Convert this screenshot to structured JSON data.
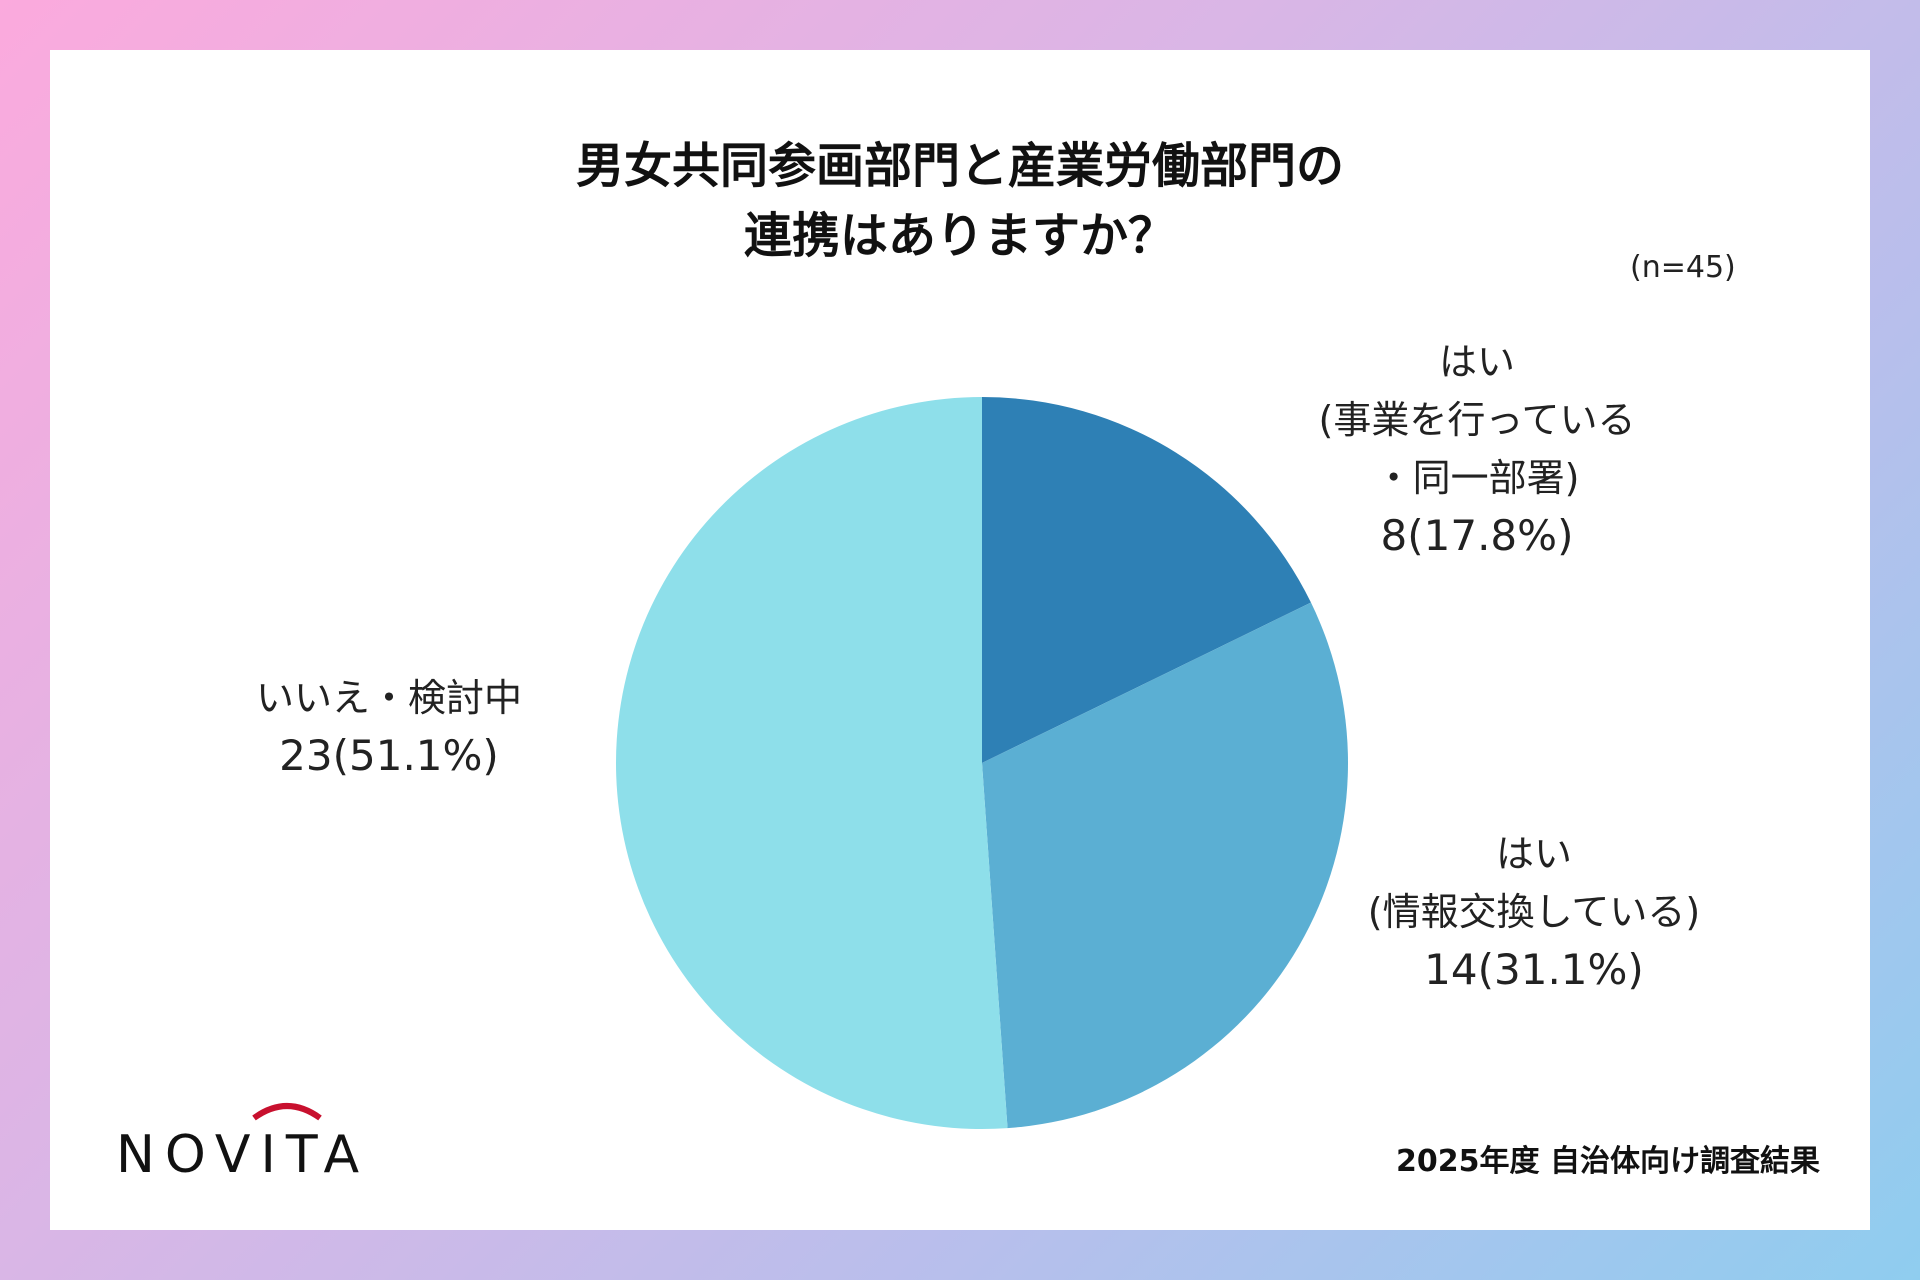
{
  "chart_data": {
    "type": "pie",
    "title": [
      "男女共同参画部門と産業労働部門の",
      "連携はありますか？"
    ],
    "sample_size": "(n=45)",
    "start_angle": "top",
    "direction": "clockwise",
    "slices": [
      {
        "label_lines": [
          "はい",
          "(事業を行っている",
          "・同一部署)"
        ],
        "count": 8,
        "percent": 17.8,
        "value_text": "8(17.8%)",
        "color": "#2e80b5"
      },
      {
        "label_lines": [
          "はい",
          "(情報交換している)"
        ],
        "count": 14,
        "percent": 31.1,
        "value_text": "14(31.1%)",
        "color": "#5bafd3"
      },
      {
        "label_lines": [
          "いいえ・検討中"
        ],
        "count": 23,
        "percent": 51.1,
        "value_text": "23(51.1%)",
        "color": "#8edfea"
      }
    ]
  },
  "footer": {
    "caption": "2025年度 自治体向け調査結果",
    "logo_text": "NOVITA"
  },
  "colors": {
    "logo_arc": "#c8102e"
  }
}
